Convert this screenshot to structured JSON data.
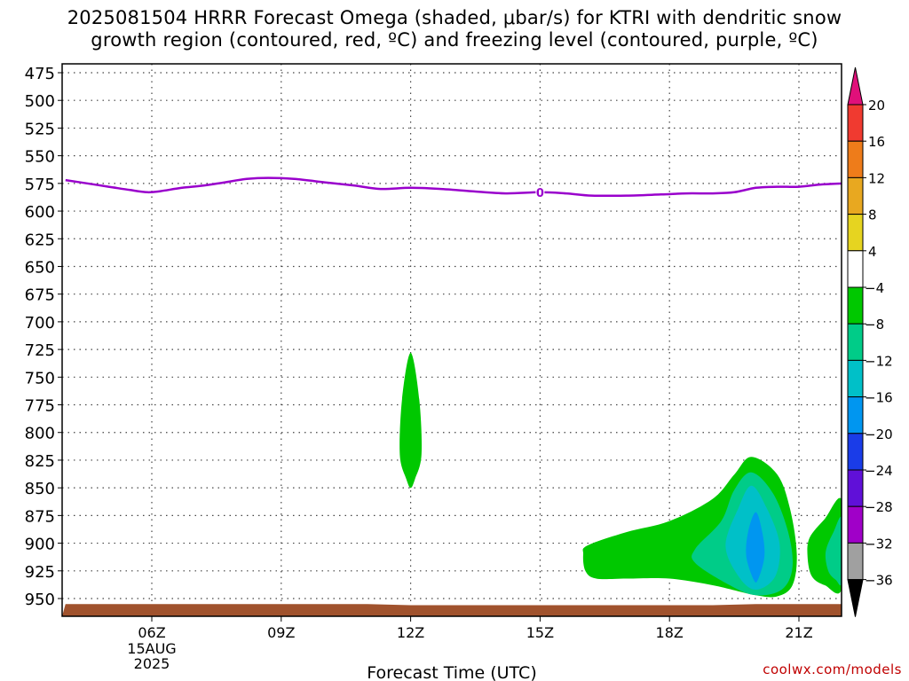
{
  "title": {
    "line1": "2025081504 HRRR Forecast Omega (shaded, μbar/s) for KTRI with dendritic snow",
    "line2": "growth region (contoured, red, ºC) and freezing level (contoured, purple, ºC)"
  },
  "credit": "coolwx.com/models",
  "chart_data": {
    "type": "contour",
    "title": "2025081504 HRRR Forecast Omega (shaded, μbar/s) for KTRI with dendritic snow growth region (contoured, red, ºC) and freezing level (contoured, purple, ºC)",
    "xlabel": "Forecast Time (UTC)",
    "ylabel": "",
    "x_range_hours_utc": [
      4,
      22
    ],
    "y_axis": {
      "reversed": true,
      "range": [
        470,
        962
      ],
      "unit": "hPa"
    },
    "x_ticks": [
      {
        "hour": 6,
        "label": "06Z",
        "sub": [
          "15AUG",
          "2025"
        ]
      },
      {
        "hour": 9,
        "label": "09Z"
      },
      {
        "hour": 12,
        "label": "12Z"
      },
      {
        "hour": 15,
        "label": "15Z"
      },
      {
        "hour": 18,
        "label": "18Z"
      },
      {
        "hour": 21,
        "label": "21Z"
      }
    ],
    "y_ticks": [
      475,
      500,
      525,
      550,
      575,
      600,
      625,
      650,
      675,
      700,
      725,
      750,
      775,
      800,
      825,
      850,
      875,
      900,
      925,
      950
    ],
    "grid": true,
    "colorbar": {
      "labels": [
        "20",
        "16",
        "12",
        "8",
        "4",
        "-4",
        "-8",
        "-12",
        "-16",
        "-20",
        "-24",
        "-28",
        "-32",
        "-36"
      ],
      "bins": [
        {
          "range": [
            20,
            null
          ],
          "color": "#e0107a"
        },
        {
          "range": [
            16,
            20
          ],
          "color": "#f03a30"
        },
        {
          "range": [
            12,
            16
          ],
          "color": "#ee7c1a"
        },
        {
          "range": [
            8,
            12
          ],
          "color": "#e8a820"
        },
        {
          "range": [
            4,
            8
          ],
          "color": "#e6d420"
        },
        {
          "range": [
            -4,
            4
          ],
          "color": "#ffffff"
        },
        {
          "range": [
            -8,
            -4
          ],
          "color": "#00c800"
        },
        {
          "range": [
            -12,
            -8
          ],
          "color": "#00cc88"
        },
        {
          "range": [
            -16,
            -12
          ],
          "color": "#00c0c8"
        },
        {
          "range": [
            -20,
            -16
          ],
          "color": "#0096f0"
        },
        {
          "range": [
            -24,
            -20
          ],
          "color": "#1a3ce8"
        },
        {
          "range": [
            -28,
            -24
          ],
          "color": "#6010d8"
        },
        {
          "range": [
            -32,
            -28
          ],
          "color": "#a000c8"
        },
        {
          "range": [
            -36,
            -32
          ],
          "color": "#a0a0a0"
        },
        {
          "range": [
            null,
            -36
          ],
          "color": "#000000"
        }
      ]
    },
    "freezing_level": {
      "color": "#9900cc",
      "label": "0",
      "label_hour": 15,
      "points": [
        [
          4.0,
          572
        ],
        [
          4.5,
          575
        ],
        [
          5.0,
          578
        ],
        [
          5.5,
          581
        ],
        [
          5.9,
          583
        ],
        [
          6.2,
          582
        ],
        [
          6.7,
          579
        ],
        [
          7.2,
          577
        ],
        [
          7.7,
          574
        ],
        [
          8.2,
          571
        ],
        [
          8.7,
          570
        ],
        [
          9.3,
          571
        ],
        [
          10.0,
          574
        ],
        [
          10.7,
          577
        ],
        [
          11.3,
          580
        ],
        [
          12.0,
          579
        ],
        [
          12.7,
          580
        ],
        [
          13.4,
          582
        ],
        [
          14.2,
          584
        ],
        [
          15.0,
          583
        ],
        [
          15.6,
          584
        ],
        [
          16.2,
          586
        ],
        [
          17.0,
          586
        ],
        [
          17.8,
          585
        ],
        [
          18.4,
          584
        ],
        [
          19.0,
          584
        ],
        [
          19.5,
          583
        ],
        [
          20.0,
          579
        ],
        [
          20.5,
          578
        ],
        [
          21.0,
          578
        ],
        [
          21.5,
          576
        ],
        [
          22.0,
          575
        ]
      ]
    },
    "omega_regions": [
      {
        "level": "-4 to -8",
        "color": "#00c800",
        "points": [
          [
            12.0,
            728
          ],
          [
            12.2,
            770
          ],
          [
            12.25,
            820
          ],
          [
            12.1,
            842
          ],
          [
            12.0,
            850
          ],
          [
            11.9,
            842
          ],
          [
            11.75,
            820
          ],
          [
            11.8,
            770
          ]
        ]
      },
      {
        "level": "-4 to -8",
        "color": "#00c800",
        "points": [
          [
            16.0,
            910
          ],
          [
            16.1,
            902
          ],
          [
            17.0,
            890
          ],
          [
            18.0,
            880
          ],
          [
            19.0,
            860
          ],
          [
            19.5,
            838
          ],
          [
            19.9,
            822
          ],
          [
            20.5,
            838
          ],
          [
            20.8,
            870
          ],
          [
            20.95,
            910
          ],
          [
            20.85,
            938
          ],
          [
            20.5,
            948
          ],
          [
            20.0,
            947
          ],
          [
            19.0,
            938
          ],
          [
            18.0,
            932
          ],
          [
            17.0,
            932
          ],
          [
            16.3,
            932
          ],
          [
            16.05,
            925
          ]
        ]
      },
      {
        "level": "-4 to -8",
        "color": "#00c800",
        "points": [
          [
            22.0,
            862
          ],
          [
            21.6,
            878
          ],
          [
            21.25,
            895
          ],
          [
            21.2,
            912
          ],
          [
            21.3,
            930
          ],
          [
            21.6,
            938
          ],
          [
            22.0,
            940
          ]
        ]
      },
      {
        "level": "-8 to -12",
        "color": "#00cc88",
        "points": [
          [
            19.2,
            880
          ],
          [
            19.5,
            852
          ],
          [
            19.9,
            836
          ],
          [
            20.4,
            855
          ],
          [
            20.75,
            890
          ],
          [
            20.85,
            922
          ],
          [
            20.6,
            942
          ],
          [
            20.0,
            947
          ],
          [
            19.4,
            938
          ],
          [
            18.6,
            918
          ],
          [
            18.6,
            905
          ]
        ]
      },
      {
        "level": "-12 to -16",
        "color": "#00c0c8",
        "points": [
          [
            19.6,
            868
          ],
          [
            19.9,
            848
          ],
          [
            20.25,
            868
          ],
          [
            20.55,
            900
          ],
          [
            20.45,
            930
          ],
          [
            20.0,
            942
          ],
          [
            19.6,
            930
          ],
          [
            19.3,
            902
          ]
        ]
      },
      {
        "level": "-16 to -20",
        "color": "#0096f0",
        "points": [
          [
            20.0,
            872
          ],
          [
            20.15,
            890
          ],
          [
            20.2,
            912
          ],
          [
            20.05,
            933
          ],
          [
            19.95,
            933
          ],
          [
            19.78,
            912
          ],
          [
            19.82,
            890
          ]
        ]
      },
      {
        "level": "-8 to -12",
        "color": "#00cc88",
        "points": [
          [
            22.0,
            878
          ],
          [
            21.8,
            890
          ],
          [
            21.62,
            908
          ],
          [
            21.68,
            925
          ],
          [
            21.85,
            933
          ],
          [
            22.0,
            934
          ]
        ]
      }
    ],
    "terrain": {
      "color": "#a0522d",
      "top_pressure": [
        [
          4.0,
          955
        ],
        [
          11.0,
          955
        ],
        [
          12.0,
          956
        ],
        [
          19.0,
          956
        ],
        [
          20.0,
          955
        ],
        [
          22.0,
          955
        ]
      ]
    }
  }
}
